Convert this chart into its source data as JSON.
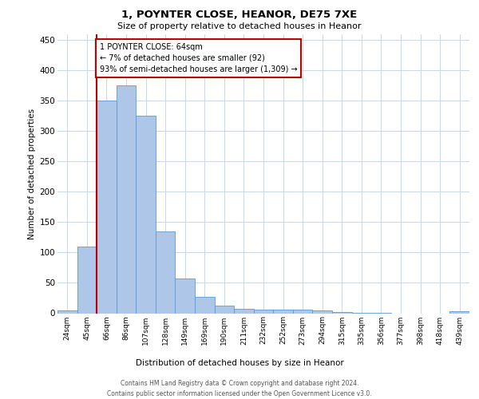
{
  "title": "1, POYNTER CLOSE, HEANOR, DE75 7XE",
  "subtitle": "Size of property relative to detached houses in Heanor",
  "xlabel": "Distribution of detached houses by size in Heanor",
  "ylabel": "Number of detached properties",
  "categories": [
    "24sqm",
    "45sqm",
    "66sqm",
    "86sqm",
    "107sqm",
    "128sqm",
    "149sqm",
    "169sqm",
    "190sqm",
    "211sqm",
    "232sqm",
    "252sqm",
    "273sqm",
    "294sqm",
    "315sqm",
    "335sqm",
    "356sqm",
    "377sqm",
    "398sqm",
    "418sqm",
    "439sqm"
  ],
  "values": [
    5,
    110,
    350,
    375,
    325,
    135,
    57,
    27,
    13,
    7,
    6,
    6,
    6,
    4,
    2,
    1,
    1,
    0,
    0,
    0,
    3
  ],
  "bar_color": "#aec6e8",
  "bar_edge_color": "#5b9bd5",
  "highlight_color": "#c00000",
  "annotation_line1": "1 POYNTER CLOSE: 64sqm",
  "annotation_line2": "← 7% of detached houses are smaller (92)",
  "annotation_line3": "93% of semi-detached houses are larger (1,309) →",
  "ylim": [
    0,
    460
  ],
  "yticks": [
    0,
    50,
    100,
    150,
    200,
    250,
    300,
    350,
    400,
    450
  ],
  "footer_line1": "Contains HM Land Registry data © Crown copyright and database right 2024.",
  "footer_line2": "Contains public sector information licensed under the Open Government Licence v3.0.",
  "background_color": "#ffffff",
  "grid_color": "#c8d8ec"
}
